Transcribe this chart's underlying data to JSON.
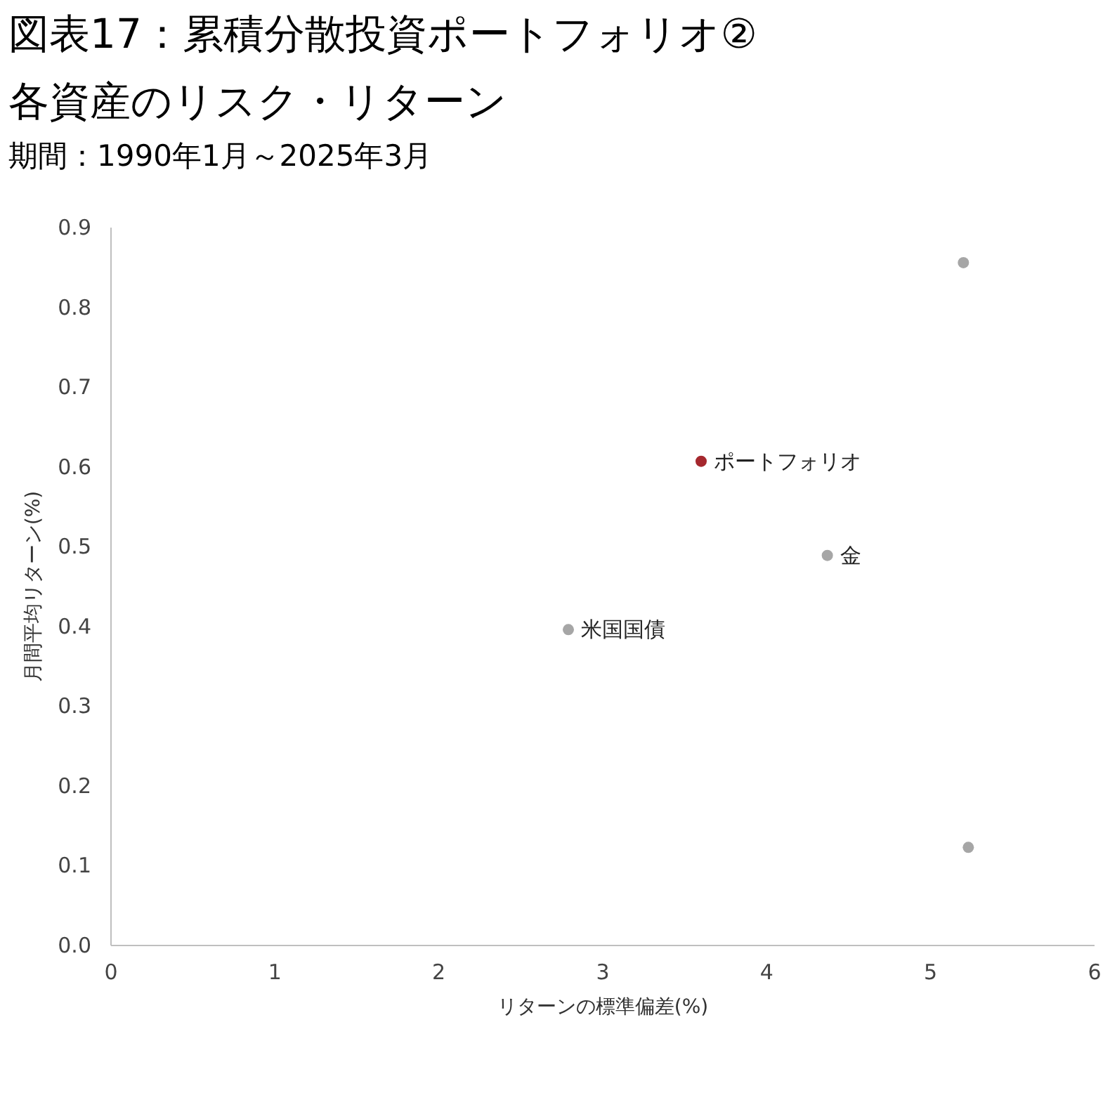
{
  "chart_data": {
    "type": "scatter",
    "title": "図表17：累積分散投資ポートフォリオ②",
    "subtitle": "各資産のリスク・リターン",
    "annotations": [
      "期間：1990年1月～2025年3月"
    ],
    "xlabel": "リターンの標準偏差(%)",
    "ylabel": "月間平均リターン(%)",
    "xlim": [
      0,
      6
    ],
    "xticks": [
      0,
      1,
      2,
      3,
      4,
      5,
      6
    ],
    "ylim": [
      0,
      0.9
    ],
    "yticks": [
      {
        "value": 0,
        "label": "0.0"
      },
      0.1,
      0.2,
      0.3,
      0.4,
      0.5,
      0.6,
      0.7,
      0.8,
      0.9
    ],
    "grid": false,
    "marker": "circle",
    "series": [
      {
        "color": "#a6a6a6",
        "x": [
          5.2
        ],
        "values": [
          0.856
        ]
      },
      {
        "name": "ポートフォリオ",
        "color": "#a5282e",
        "x": [
          3.6
        ],
        "values": [
          0.607
        ]
      },
      {
        "name": "金",
        "color": "#a6a6a6",
        "x": [
          4.37
        ],
        "values": [
          0.489
        ]
      },
      {
        "name": "米国国債",
        "color": "#a6a6a6",
        "x": [
          2.79
        ],
        "values": [
          0.396
        ]
      },
      {
        "color": "#a6a6a6",
        "x": [
          5.23
        ],
        "values": [
          0.123
        ]
      }
    ]
  }
}
